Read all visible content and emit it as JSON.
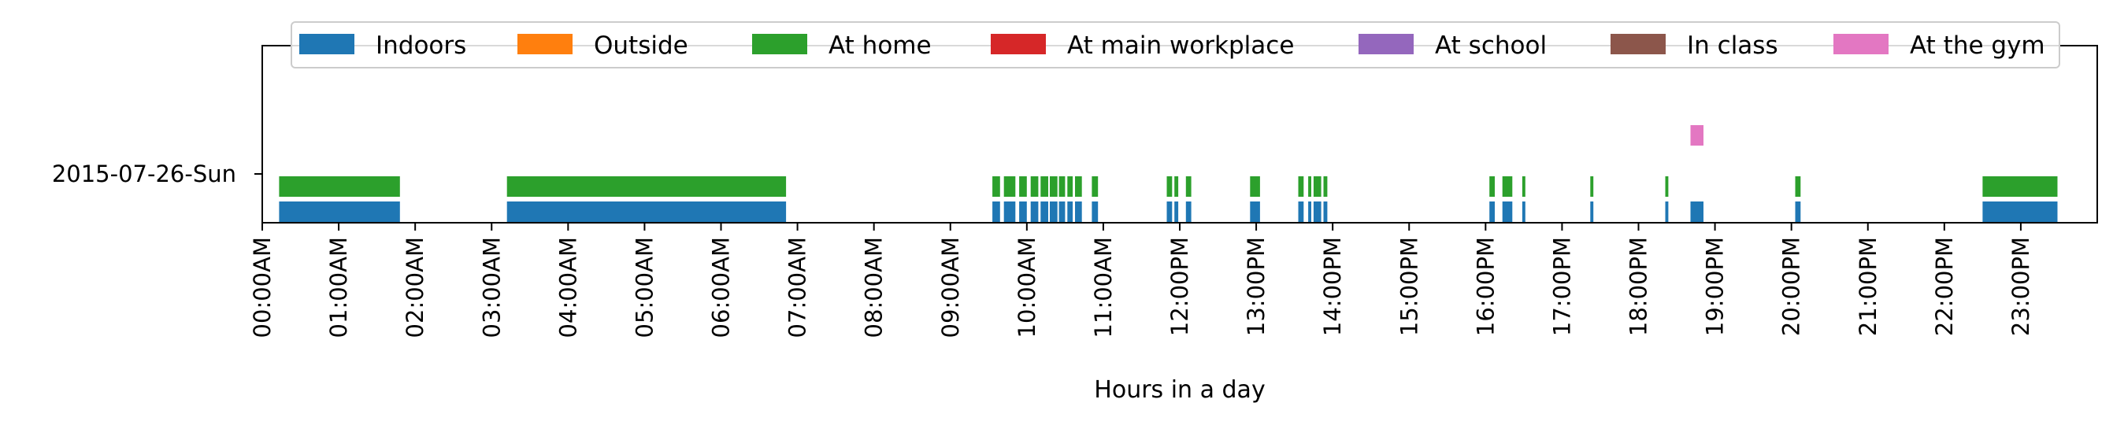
{
  "chart_data": {
    "type": "bar",
    "orientation": "horizontal-timeline",
    "title": "",
    "xlabel": "Hours in a day",
    "ylabel": "",
    "xlim": [
      0,
      24
    ],
    "y_category": "2015-07-26-Sun",
    "x_ticks": [
      "00:00AM",
      "01:00AM",
      "02:00AM",
      "03:00AM",
      "04:00AM",
      "05:00AM",
      "06:00AM",
      "07:00AM",
      "08:00AM",
      "09:00AM",
      "10:00AM",
      "11:00AM",
      "12:00PM",
      "13:00PM",
      "14:00PM",
      "15:00PM",
      "16:00PM",
      "17:00PM",
      "18:00PM",
      "19:00PM",
      "20:00PM",
      "21:00PM",
      "22:00PM",
      "23:00PM"
    ],
    "grid": false,
    "legend_placement": "top-center",
    "series": [
      {
        "name": "Indoors",
        "color": "#1f77b4",
        "intervals": [
          [
            0.22,
            1.8
          ],
          [
            3.2,
            6.85
          ],
          [
            9.55,
            9.65
          ],
          [
            9.7,
            9.85
          ],
          [
            9.9,
            10.0
          ],
          [
            10.05,
            10.15
          ],
          [
            10.18,
            10.28
          ],
          [
            10.3,
            10.4
          ],
          [
            10.42,
            10.5
          ],
          [
            10.53,
            10.6
          ],
          [
            10.63,
            10.72
          ],
          [
            10.85,
            10.93
          ],
          [
            11.83,
            11.9
          ],
          [
            11.93,
            11.98
          ],
          [
            12.08,
            12.15
          ],
          [
            12.92,
            13.05
          ],
          [
            13.55,
            13.62
          ],
          [
            13.68,
            13.72
          ],
          [
            13.75,
            13.85
          ],
          [
            13.88,
            13.93
          ],
          [
            16.05,
            16.12
          ],
          [
            16.22,
            16.35
          ],
          [
            16.48,
            16.52
          ],
          [
            17.37,
            17.41
          ],
          [
            18.35,
            18.39
          ],
          [
            18.68,
            18.85
          ],
          [
            20.05,
            20.12
          ],
          [
            22.5,
            23.48
          ]
        ]
      },
      {
        "name": "Outside",
        "color": "#ff7f0e",
        "intervals": []
      },
      {
        "name": "At home",
        "color": "#2ca02c",
        "intervals": [
          [
            0.22,
            1.8
          ],
          [
            3.2,
            6.85
          ],
          [
            9.55,
            9.65
          ],
          [
            9.7,
            9.85
          ],
          [
            9.9,
            10.0
          ],
          [
            10.05,
            10.15
          ],
          [
            10.18,
            10.28
          ],
          [
            10.3,
            10.4
          ],
          [
            10.42,
            10.5
          ],
          [
            10.53,
            10.6
          ],
          [
            10.63,
            10.72
          ],
          [
            10.85,
            10.93
          ],
          [
            11.83,
            11.9
          ],
          [
            11.93,
            11.98
          ],
          [
            12.08,
            12.15
          ],
          [
            12.92,
            13.05
          ],
          [
            13.55,
            13.62
          ],
          [
            13.68,
            13.72
          ],
          [
            13.75,
            13.85
          ],
          [
            13.88,
            13.93
          ],
          [
            16.05,
            16.12
          ],
          [
            16.22,
            16.35
          ],
          [
            16.48,
            16.52
          ],
          [
            17.37,
            17.41
          ],
          [
            18.35,
            18.39
          ],
          [
            20.05,
            20.12
          ],
          [
            22.5,
            23.48
          ]
        ]
      },
      {
        "name": "At main workplace",
        "color": "#d62728",
        "intervals": []
      },
      {
        "name": "At school",
        "color": "#9467bd",
        "intervals": []
      },
      {
        "name": "In class",
        "color": "#8c564b",
        "intervals": []
      },
      {
        "name": "At the gym",
        "color": "#e377c2",
        "intervals": [
          [
            18.68,
            18.85
          ]
        ]
      }
    ]
  }
}
